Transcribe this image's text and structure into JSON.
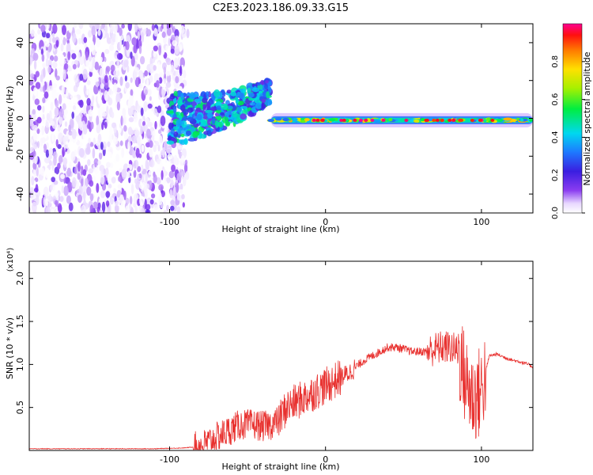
{
  "figure_title": "C2E3.2023.186.09.33.G15",
  "chart_data": [
    {
      "type": "heatmap",
      "title": "",
      "xlabel": "Height of straight line (km)",
      "ylabel": "Frequency (Hz)",
      "xlim": [
        -190,
        133
      ],
      "ylim": [
        -50,
        50
      ],
      "x_ticks": [
        -100,
        0,
        100
      ],
      "y_ticks": [
        -40,
        -20,
        0,
        20,
        40
      ],
      "colorbar": {
        "label": "Normalized spectral amplitude",
        "range": [
          0,
          1
        ],
        "ticks": [
          "0.0",
          "0.2",
          "0.4",
          "0.6",
          "0.8"
        ],
        "colormap": "rainbow"
      },
      "regions": [
        {
          "description": "broadband noise",
          "x_range": [
            -190,
            -90
          ],
          "freq_range": [
            -50,
            50
          ],
          "amplitude_range": [
            0.0,
            0.2
          ]
        },
        {
          "description": "scintillation onset",
          "x_range": [
            -100,
            -35
          ],
          "freq_center": [
            0,
            15
          ],
          "amplitude_range": [
            0.15,
            0.55
          ]
        },
        {
          "description": "narrow carrier line",
          "x_range": [
            -35,
            133
          ],
          "freq_center": -1,
          "amplitude_range": [
            0.3,
            1.0
          ]
        }
      ]
    },
    {
      "type": "line",
      "title": "",
      "xlabel": "Height of straight line (km)",
      "ylabel": "SNR (10 * v/v)",
      "y_multiplier": "(x10⁴)",
      "xlim": [
        -190,
        133
      ],
      "ylim": [
        0,
        2.2
      ],
      "x_ticks": [
        -100,
        0,
        100
      ],
      "y_ticks": [
        "0.5",
        "1.0",
        "1.5",
        "2.0"
      ],
      "series": [
        {
          "color": "#e8312f",
          "x": [
            -190,
            -150,
            -110,
            -90,
            -80,
            -75,
            -70,
            -65,
            -60,
            -55,
            -50,
            -45,
            -40,
            -35,
            -30,
            -25,
            -20,
            -15,
            -10,
            -5,
            0,
            5,
            10,
            15,
            20,
            25,
            30,
            35,
            40,
            45,
            50,
            55,
            60,
            65,
            70,
            75,
            80,
            85,
            90,
            95,
            100,
            105,
            110,
            115,
            120,
            125,
            130,
            133
          ],
          "y": [
            0.02,
            0.02,
            0.02,
            0.03,
            0.05,
            0.1,
            0.15,
            0.2,
            0.25,
            0.3,
            0.3,
            0.3,
            0.28,
            0.3,
            0.35,
            0.5,
            0.55,
            0.6,
            0.65,
            0.7,
            0.75,
            0.8,
            0.85,
            0.9,
            0.98,
            1.05,
            1.1,
            1.15,
            1.2,
            1.2,
            1.18,
            1.15,
            1.15,
            1.15,
            1.18,
            1.2,
            1.2,
            1.15,
            0.8,
            0.6,
            0.7,
            1.1,
            1.12,
            1.08,
            1.05,
            1.03,
            1.0,
            0.97
          ]
        }
      ]
    }
  ]
}
